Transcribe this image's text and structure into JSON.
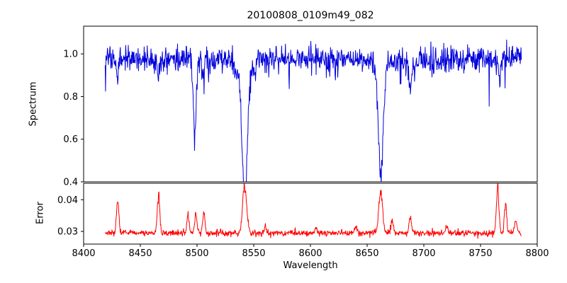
{
  "chart_data": {
    "type": "line",
    "title": "20100808_0109m49_082",
    "xlabel": "Wavelength",
    "seed": 42,
    "n_points": 1100,
    "data_x_min": 8419,
    "data_x_max": 8786,
    "x_axis": {
      "min": 8400,
      "max": 8800,
      "ticks": [
        8400,
        8450,
        8500,
        8550,
        8600,
        8650,
        8700,
        8750,
        8800
      ]
    },
    "legend": "none",
    "grid": false,
    "panels": [
      {
        "name": "spectrum",
        "ylabel": "Spectrum",
        "color": "#0000dd",
        "ymin": 0.4,
        "ymax": 1.13,
        "yticks": [
          "0.4",
          "0.6",
          "0.8",
          "1.0"
        ],
        "continuum": 0.975,
        "noise_sigma": 0.03,
        "spike_prob": 0.04,
        "spike_depth": 0.06,
        "absorption_lines": [
          {
            "center": 8430,
            "depth": 0.09,
            "sigma": 0.9
          },
          {
            "center": 8466,
            "depth": 0.09,
            "sigma": 0.9
          },
          {
            "center": 8498,
            "depth": 0.36,
            "sigma": 1.3
          },
          {
            "center": 8505,
            "depth": 0.08,
            "sigma": 0.9
          },
          {
            "center": 8542,
            "depth": 0.55,
            "sigma": 2.2
          },
          {
            "center": 8542,
            "depth": 0.1,
            "sigma": 6.0
          },
          {
            "center": 8662,
            "depth": 0.46,
            "sigma": 2.0
          },
          {
            "center": 8662,
            "depth": 0.07,
            "sigma": 5.0
          },
          {
            "center": 8688,
            "depth": 0.16,
            "sigma": 1.2
          },
          {
            "center": 8767,
            "depth": 0.1,
            "sigma": 1.0
          }
        ]
      },
      {
        "name": "error",
        "ylabel": "Error",
        "color": "#ff0000",
        "ymin": 0.026,
        "ymax": 0.0452,
        "yticks": [
          "0.03",
          "0.04"
        ],
        "baseline": 0.0295,
        "noise_sigma": 0.0005,
        "peaks": [
          {
            "center": 8430,
            "height": 0.011,
            "sigma": 1.0
          },
          {
            "center": 8466,
            "height": 0.012,
            "sigma": 1.1
          },
          {
            "center": 8492,
            "height": 0.006,
            "sigma": 1.0
          },
          {
            "center": 8499,
            "height": 0.0065,
            "sigma": 1.0
          },
          {
            "center": 8506,
            "height": 0.0065,
            "sigma": 1.0
          },
          {
            "center": 8542,
            "height": 0.015,
            "sigma": 1.8
          },
          {
            "center": 8560,
            "height": 0.002,
            "sigma": 1.0
          },
          {
            "center": 8605,
            "height": 0.0018,
            "sigma": 1.0
          },
          {
            "center": 8640,
            "height": 0.002,
            "sigma": 1.0
          },
          {
            "center": 8662,
            "height": 0.0135,
            "sigma": 1.6
          },
          {
            "center": 8672,
            "height": 0.004,
            "sigma": 1.0
          },
          {
            "center": 8688,
            "height": 0.005,
            "sigma": 1.1
          },
          {
            "center": 8720,
            "height": 0.002,
            "sigma": 1.0
          },
          {
            "center": 8765,
            "height": 0.0145,
            "sigma": 1.1
          },
          {
            "center": 8772,
            "height": 0.009,
            "sigma": 1.0
          },
          {
            "center": 8781,
            "height": 0.004,
            "sigma": 1.0
          }
        ]
      }
    ]
  }
}
